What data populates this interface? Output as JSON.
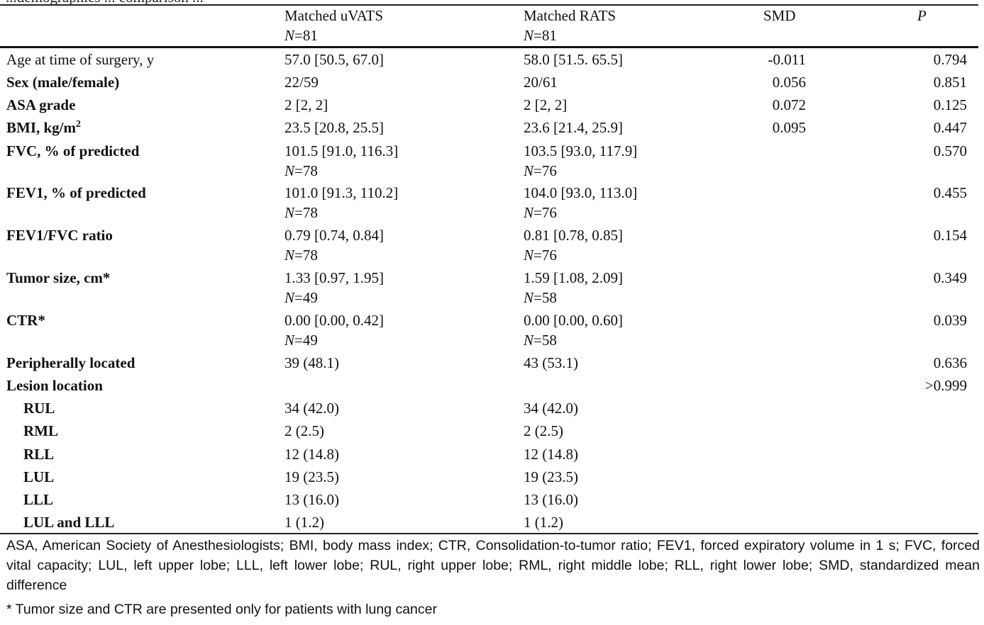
{
  "caption_fragment": "...demographics ... comparison ...",
  "header": {
    "col1_title": "Matched uVATS",
    "col1_n_prefix": "N",
    "col1_n_value": "=81",
    "col2_title": "Matched RATS",
    "col2_n_prefix": "N",
    "col2_n_value": "=81",
    "smd": "SMD",
    "p": "P"
  },
  "rows": {
    "age": {
      "label": "Age at time of surgery, y",
      "c1": "57.0 [50.5, 67.0]",
      "c2": "58.0 [51.5. 65.5]",
      "smd": "-0.011",
      "p": "0.794"
    },
    "sex": {
      "label": "Sex (male/female)",
      "c1": "22/59",
      "c2": "20/61",
      "smd": "0.056",
      "p": "0.851"
    },
    "asa": {
      "label": "ASA grade",
      "c1": "2 [2, 2]",
      "c2": "2 [2, 2]",
      "smd": "0.072",
      "p": "0.125"
    },
    "bmi": {
      "label": "BMI, kg/m",
      "label_sup": "2",
      "c1": "23.5 [20.8, 25.5]",
      "c2": "23.6 [21.4, 25.9]",
      "smd": "0.095",
      "p": "0.447"
    },
    "fvc": {
      "label": "FVC, % of predicted",
      "c1": "101.5 [91.0, 116.3]",
      "c1_n": "=78",
      "c2": "103.5 [93.0, 117.9]",
      "c2_n": "=76",
      "p": "0.570"
    },
    "fev1": {
      "label": "FEV1, % of predicted",
      "c1": "101.0 [91.3, 110.2]",
      "c1_n": "=78",
      "c2": "104.0 [93.0, 113.0]",
      "c2_n": "=76",
      "p": "0.455"
    },
    "ratio": {
      "label": "FEV1/FVC ratio",
      "c1": "0.79 [0.74, 0.84]",
      "c1_n": "=78",
      "c2": "0.81 [0.78, 0.85]",
      "c2_n": "=76",
      "p": "0.154"
    },
    "tumor": {
      "label": "Tumor size, cm*",
      "c1": "1.33 [0.97, 1.95]",
      "c1_n": "=49",
      "c2": "1.59 [1.08, 2.09]",
      "c2_n": "=58",
      "p": "0.349"
    },
    "ctr": {
      "label": "CTR*",
      "c1": "0.00 [0.00, 0.42]",
      "c1_n": "=49",
      "c2": "0.00 [0.00, 0.60]",
      "c2_n": "=58",
      "p": "0.039"
    },
    "peri": {
      "label": "Peripherally located",
      "c1": "39 (48.1)",
      "c2": "43 (53.1)",
      "p": "0.636"
    },
    "lesion": {
      "label": "Lesion location",
      "p": ">0.999"
    },
    "rul": {
      "label": "RUL",
      "c1": "34 (42.0)",
      "c2": "34 (42.0)"
    },
    "rml": {
      "label": "RML",
      "c1": "2 (2.5)",
      "c2": "2 (2.5)"
    },
    "rll": {
      "label": "RLL",
      "c1": "12 (14.8)",
      "c2": "12 (14.8)"
    },
    "lul": {
      "label": "LUL",
      "c1": "19 (23.5)",
      "c2": "19 (23.5)"
    },
    "lll": {
      "label": "LLL",
      "c1": "13 (16.0)",
      "c2": "13 (16.0)"
    },
    "lullll": {
      "label": "LUL and LLL",
      "c1": "1 (1.2)",
      "c2": "1 (1.2)"
    }
  },
  "n_symbol": "N",
  "footnote_abbrev": "ASA, American Society of Anesthesiologists; BMI, body mass index; CTR, Consolidation-to-tumor ratio; FEV1, forced expiratory volume in 1 s; FVC, forced vital capacity; LUL, left upper lobe; LLL, left lower lobe; RUL, right upper lobe; RML, right middle lobe; RLL, right lower lobe; SMD, standardized mean difference",
  "footnote_star": "* Tumor size and CTR are presented only for patients with lung cancer"
}
